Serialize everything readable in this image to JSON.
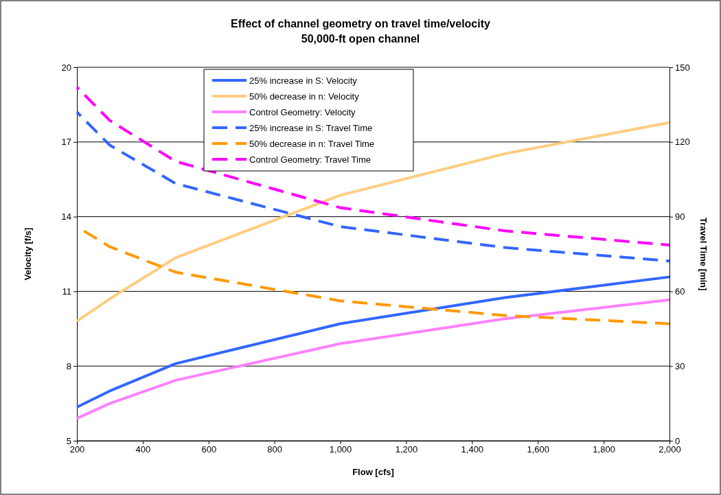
{
  "chart_data": {
    "type": "line",
    "title": "Effect of channel geometry on travel time/velocity",
    "subtitle": "50,000-ft open channel",
    "xlabel": "Flow [cfs]",
    "ylabel": "Velocity [f/s]",
    "y2label": "Travel Time [min]",
    "x": [
      200,
      300,
      500,
      1000,
      1500,
      2000
    ],
    "xlim": [
      200,
      2000
    ],
    "xticks": [
      {
        "value": 200,
        "label": "200"
      },
      {
        "value": 400,
        "label": "400"
      },
      {
        "value": 600,
        "label": "600"
      },
      {
        "value": 800,
        "label": "800"
      },
      {
        "value": 1000,
        "label": "1,000"
      },
      {
        "value": 1200,
        "label": "1,200"
      },
      {
        "value": 1400,
        "label": "1,400"
      },
      {
        "value": 1600,
        "label": "1,600"
      },
      {
        "value": 1800,
        "label": "1,800"
      },
      {
        "value": 2000,
        "label": "2,000"
      }
    ],
    "ylim": [
      5,
      20
    ],
    "yticks": [
      5,
      8,
      11,
      14,
      17,
      20
    ],
    "y2lim": [
      0,
      150
    ],
    "y2ticks": [
      0,
      30,
      60,
      90,
      120,
      150
    ],
    "grid": "y",
    "legend": "top",
    "marker": "none",
    "series": [
      {
        "name": "25% increase in S: Velocity",
        "color": "#3366ff",
        "line_style": "solid",
        "values": [
          6.35,
          7.0,
          8.1,
          9.7,
          10.75,
          11.58
        ]
      },
      {
        "name": "50% decrease in n: Velocity",
        "color": "#ffcc80",
        "line_style": "solid",
        "values": [
          9.8,
          10.7,
          12.35,
          14.86,
          16.53,
          17.78
        ]
      },
      {
        "name": "Control Geometry: Velocity",
        "color": "#ff80ff",
        "line_style": "solid",
        "values": [
          5.9,
          6.5,
          7.43,
          8.9,
          9.9,
          10.66
        ]
      },
      {
        "name": "25% increase in S: Travel Time",
        "color": "#3366ff",
        "line_style": "dashed",
        "axis": "y2",
        "values": [
          132,
          118.7,
          103.3,
          86.0,
          77.6,
          72.2
        ]
      },
      {
        "name": "50% decrease in n: Travel Time",
        "color": "#ff9900",
        "line_style": "dashed",
        "axis": "y2",
        "values": [
          86,
          77.9,
          67.7,
          56.2,
          50.3,
          47.0
        ]
      },
      {
        "name": "Control Geometry: Travel Time",
        "color": "#ff00ff",
        "line_style": "dashed",
        "axis": "y2",
        "values": [
          142,
          128.6,
          112.2,
          93.6,
          84.3,
          78.6
        ]
      }
    ]
  }
}
